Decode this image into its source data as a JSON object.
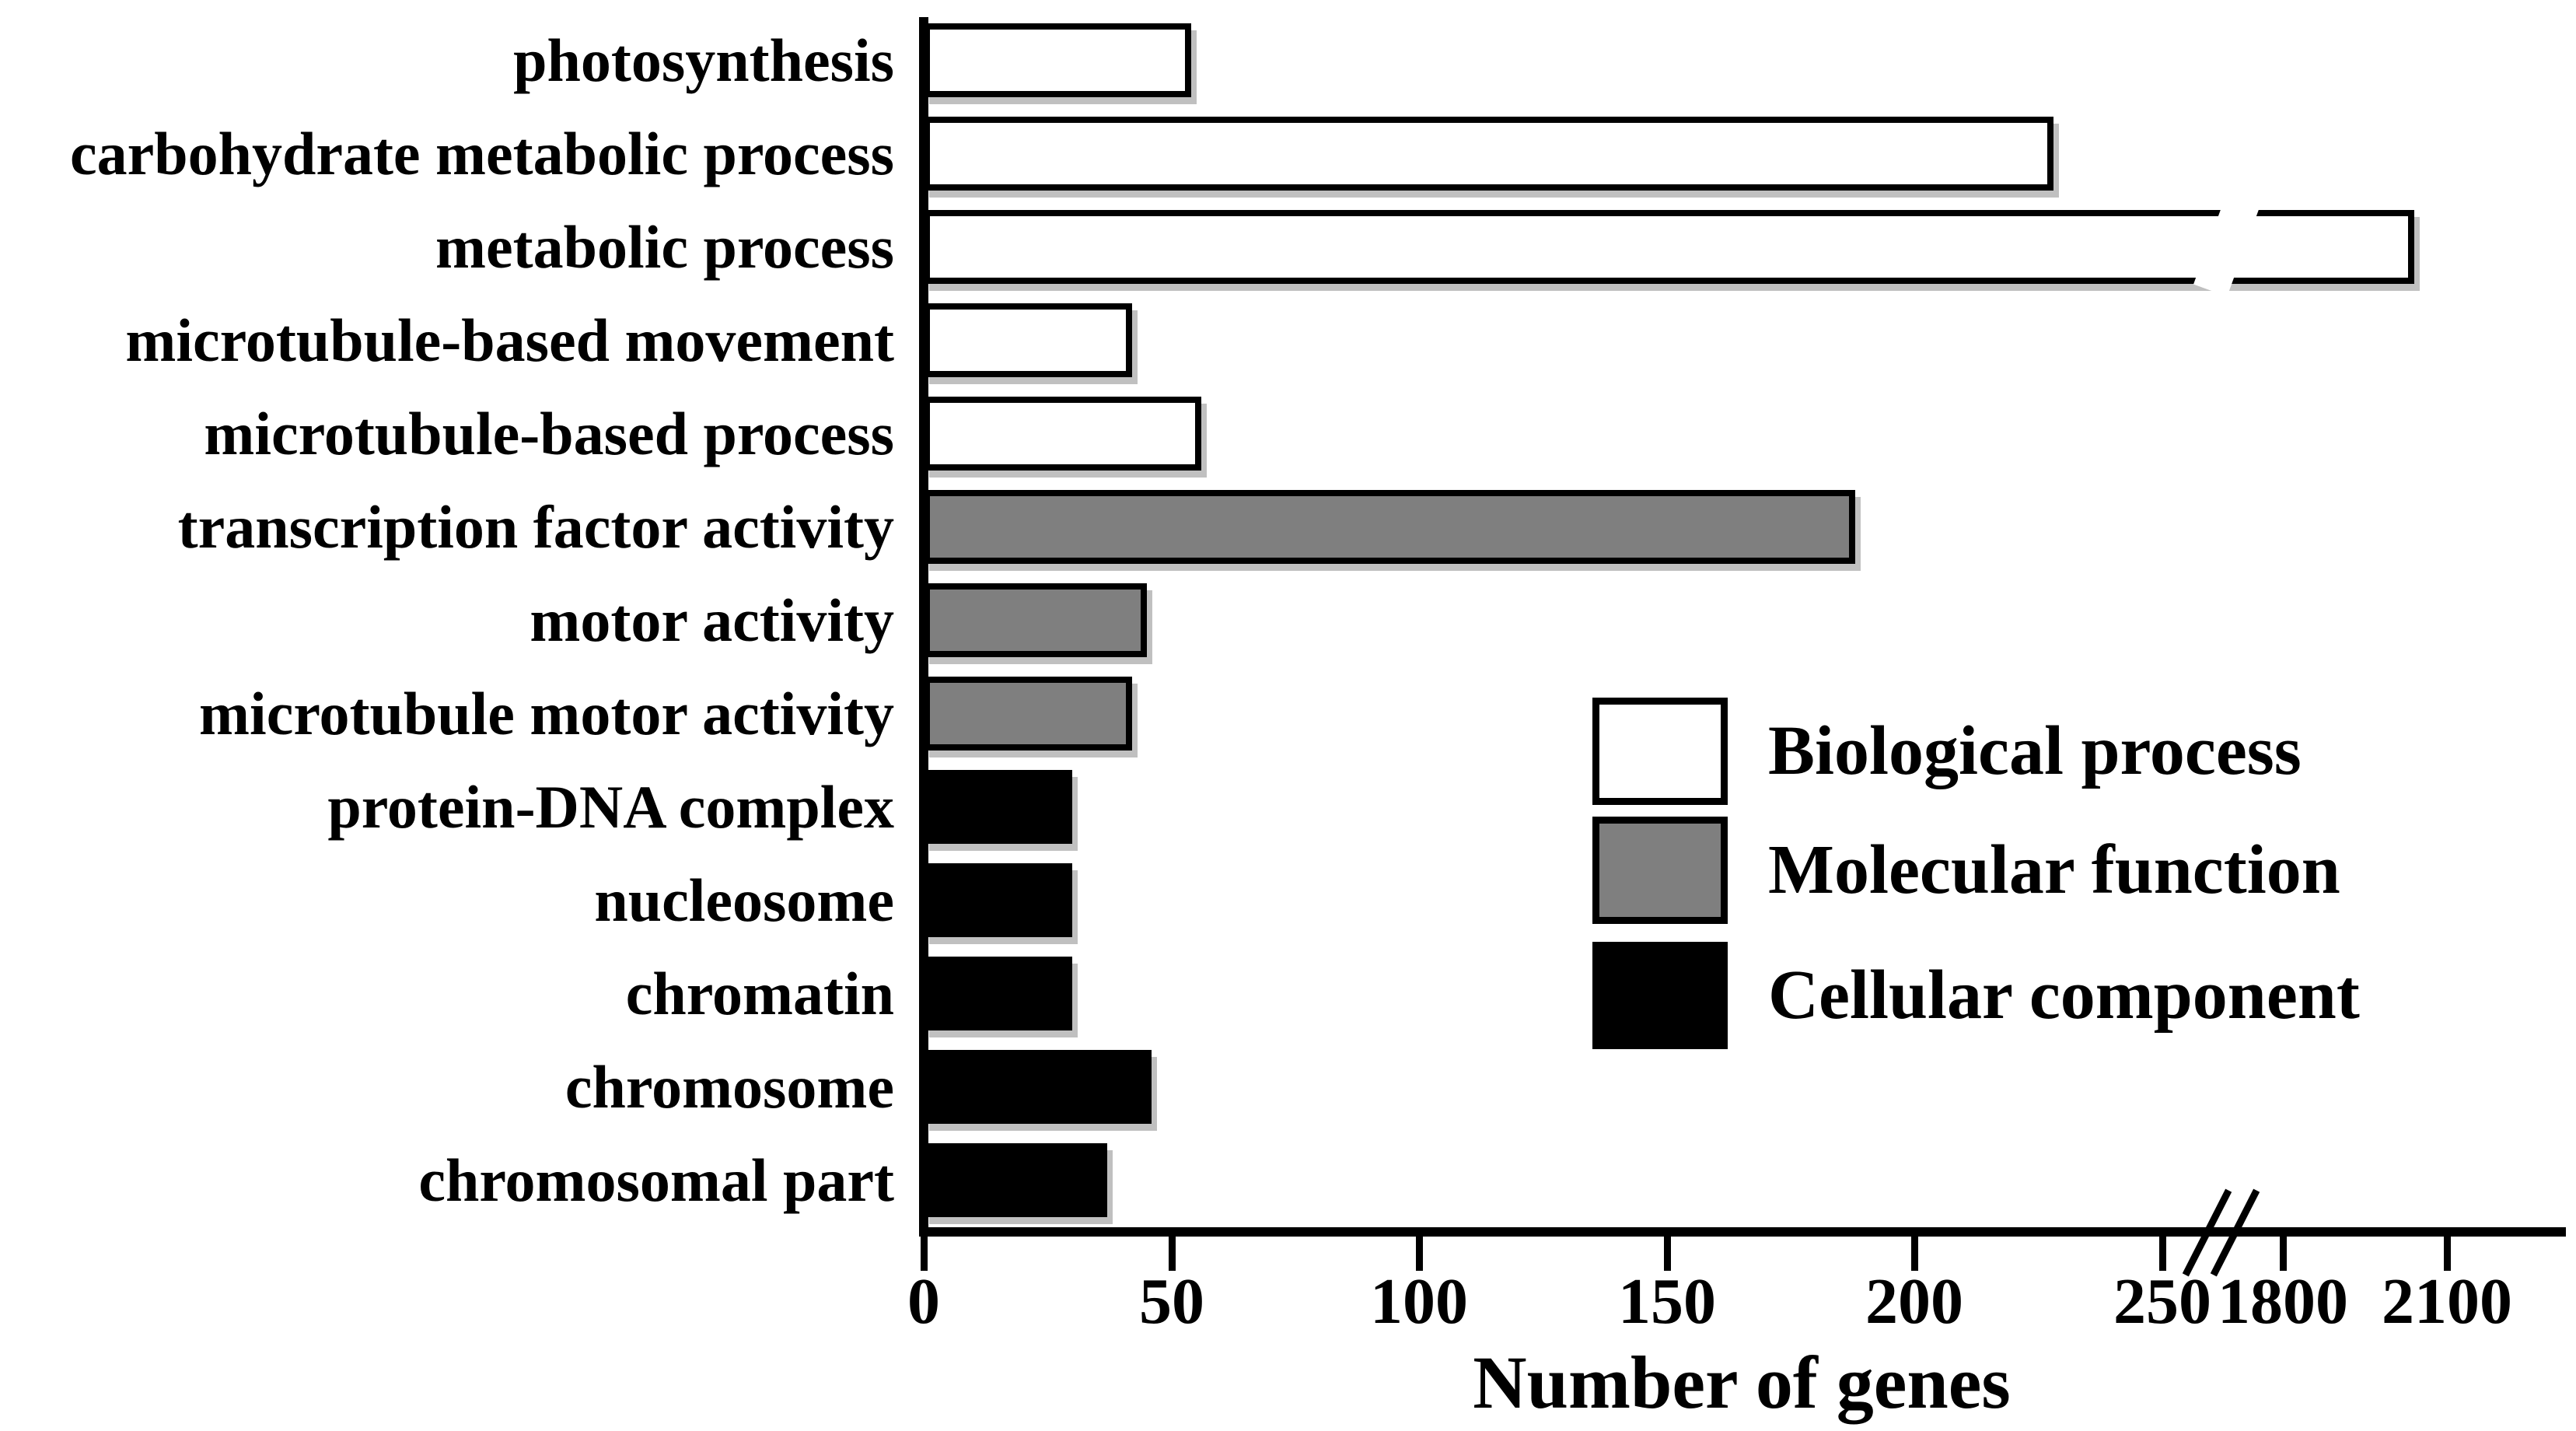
{
  "chart_data": {
    "type": "bar",
    "orientation": "horizontal",
    "title": "",
    "xlabel": "Number of genes",
    "ylabel": "",
    "categories": [
      "photosynthesis",
      "carbohydrate metabolic process",
      "metabolic process",
      "microtubule-based movement",
      "microtubule-based process",
      "transcription factor activity",
      "motor activity",
      "microtubule motor activity",
      "protein-DNA complex",
      "nucleosome",
      "chromatin",
      "chromosome",
      "chromosomal part"
    ],
    "values": [
      54,
      228,
      2040,
      42,
      56,
      188,
      45,
      42,
      30,
      30,
      30,
      46,
      37
    ],
    "groups": [
      "bp",
      "bp",
      "bp",
      "bp",
      "bp",
      "mf",
      "mf",
      "mf",
      "cc",
      "cc",
      "cc",
      "cc",
      "cc"
    ],
    "group_colors": {
      "bp": "#ffffff",
      "mf": "#7f7f7f",
      "cc": "#000000"
    },
    "legend": [
      {
        "label": "Biological process",
        "color": "#ffffff"
      },
      {
        "label": "Molecular function",
        "color": "#7f7f7f"
      },
      {
        "label": "Cellular component",
        "color": "#000000"
      }
    ],
    "legend_position": "center-right",
    "x_ticks_before_break": [
      0,
      50,
      100,
      150,
      200,
      250
    ],
    "x_ticks_after_break": [
      1800,
      2100
    ],
    "axis_break": {
      "after_value": 250,
      "resume_value": 1800
    },
    "xlim": [
      0,
      2300
    ],
    "grid": false,
    "bar_outline_color": "#000000",
    "axis_color": "#000000",
    "background_color": "#ffffff"
  }
}
